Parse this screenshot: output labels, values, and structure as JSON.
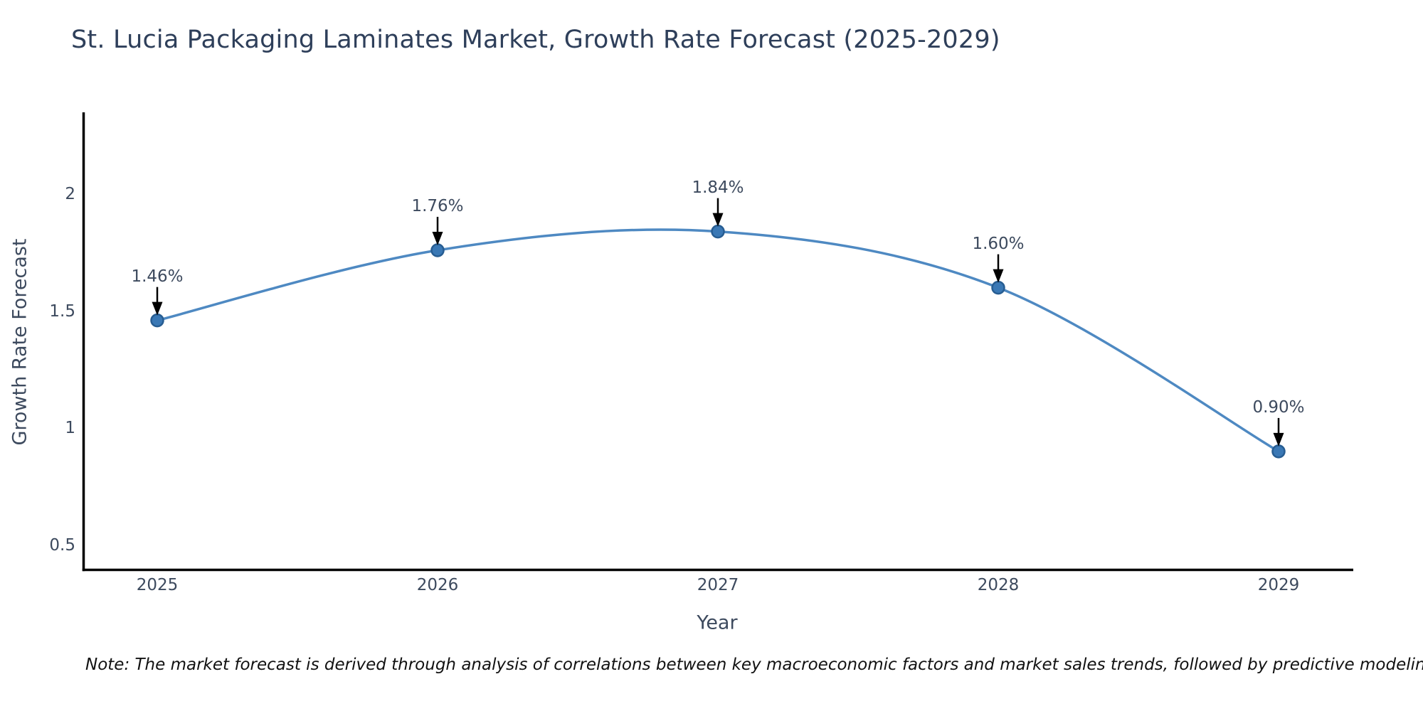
{
  "title": "St. Lucia Packaging Laminates Market, Growth Rate Forecast (2025-2029)",
  "note": "Note: The market forecast is derived through analysis of correlations between key macroeconomic factors and market sales trends, followed by predictive modeling to project future sales trends.",
  "colors": {
    "background": "#ffffff",
    "line": "#4e89c2",
    "marker_fill": "#3a78b5",
    "marker_edge": "#275d92",
    "axis_line": "#000000",
    "annotation_arrow": "#000000",
    "title_text": "#2e3f5a",
    "tick_text": "#3d4a5e",
    "note_text": "#111111"
  },
  "chart_data": {
    "type": "line",
    "title": "St. Lucia Packaging Laminates Market, Growth Rate Forecast (2025-2029)",
    "xlabel": "Year",
    "ylabel": "Growth Rate Forecast",
    "x": [
      2025,
      2026,
      2027,
      2028,
      2029
    ],
    "values": [
      1.46,
      1.76,
      1.84,
      1.6,
      0.9
    ],
    "point_labels": [
      "1.46%",
      "1.76%",
      "1.84%",
      "1.60%",
      "0.90%"
    ],
    "x_tick_labels": [
      "2025",
      "2026",
      "2027",
      "2028",
      "2029"
    ],
    "yticks": [
      0.5,
      1,
      1.5,
      2
    ],
    "ytick_labels": [
      "0.5",
      "1",
      "1.5",
      "2"
    ],
    "ylim": [
      0.39,
      2.35
    ],
    "grid": false,
    "legend_position": "none",
    "line_shape": "spline",
    "markers": true,
    "annotation_style": "percentage labels with downward black arrows above each data point"
  }
}
